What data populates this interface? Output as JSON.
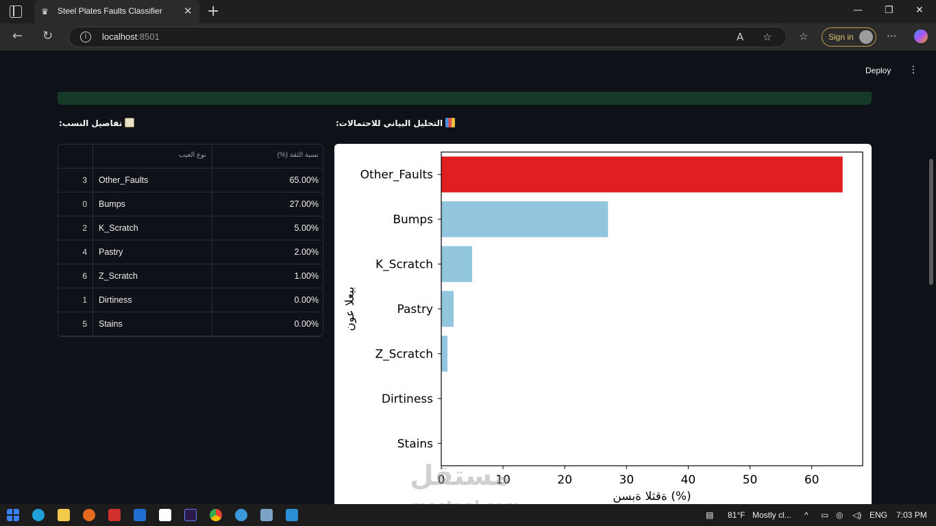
{
  "browser": {
    "tab_title": "Steel Plates Faults Classifier",
    "url_host": "localhost",
    "url_port": ":8501",
    "sign_in": "Sign in",
    "new_tab_glyph": "+",
    "close_glyph": "✕"
  },
  "app": {
    "deploy_label": "Deploy",
    "menu_glyph": "⋮",
    "table_heading": "تفاصيل النسب:",
    "chart_heading": "التحليل البياني للاحتمالات:",
    "table": {
      "headers": [
        "نوع العيب",
        "نسبة الثقة (%)"
      ],
      "rows": [
        {
          "index": "3",
          "fault": "Other_Faults",
          "pct": "65.00%"
        },
        {
          "index": "0",
          "fault": "Bumps",
          "pct": "27.00%"
        },
        {
          "index": "2",
          "fault": "K_Scratch",
          "pct": "5.00%"
        },
        {
          "index": "4",
          "fault": "Pastry",
          "pct": "2.00%"
        },
        {
          "index": "6",
          "fault": "Z_Scratch",
          "pct": "1.00%"
        },
        {
          "index": "1",
          "fault": "Dirtiness",
          "pct": "0.00%"
        },
        {
          "index": "5",
          "fault": "Stains",
          "pct": "0.00%"
        }
      ]
    }
  },
  "chart_data": {
    "type": "bar",
    "orientation": "horizontal",
    "categories": [
      "Other_Faults",
      "Bumps",
      "K_Scratch",
      "Pastry",
      "Z_Scratch",
      "Dirtiness",
      "Stains"
    ],
    "values": [
      65,
      27,
      5,
      2,
      1,
      0,
      0
    ],
    "colors": [
      "#e02020",
      "#92c5de",
      "#92c5de",
      "#92c5de",
      "#92c5de",
      "#92c5de",
      "#92c5de"
    ],
    "xlabel": "ةقثلا ةبسن (%)",
    "ylabel": "بيعلا عون",
    "xticks": [
      0,
      10,
      20,
      30,
      40,
      50,
      60
    ],
    "xlim": [
      0,
      68.25
    ],
    "grid": false
  },
  "watermark": {
    "line1": "مستقل",
    "line2": "mostaql.com"
  },
  "taskbar": {
    "weather": "81°F",
    "weather_desc": "Mostly cl...",
    "lang": "ENG",
    "time": "7:03 PM"
  }
}
